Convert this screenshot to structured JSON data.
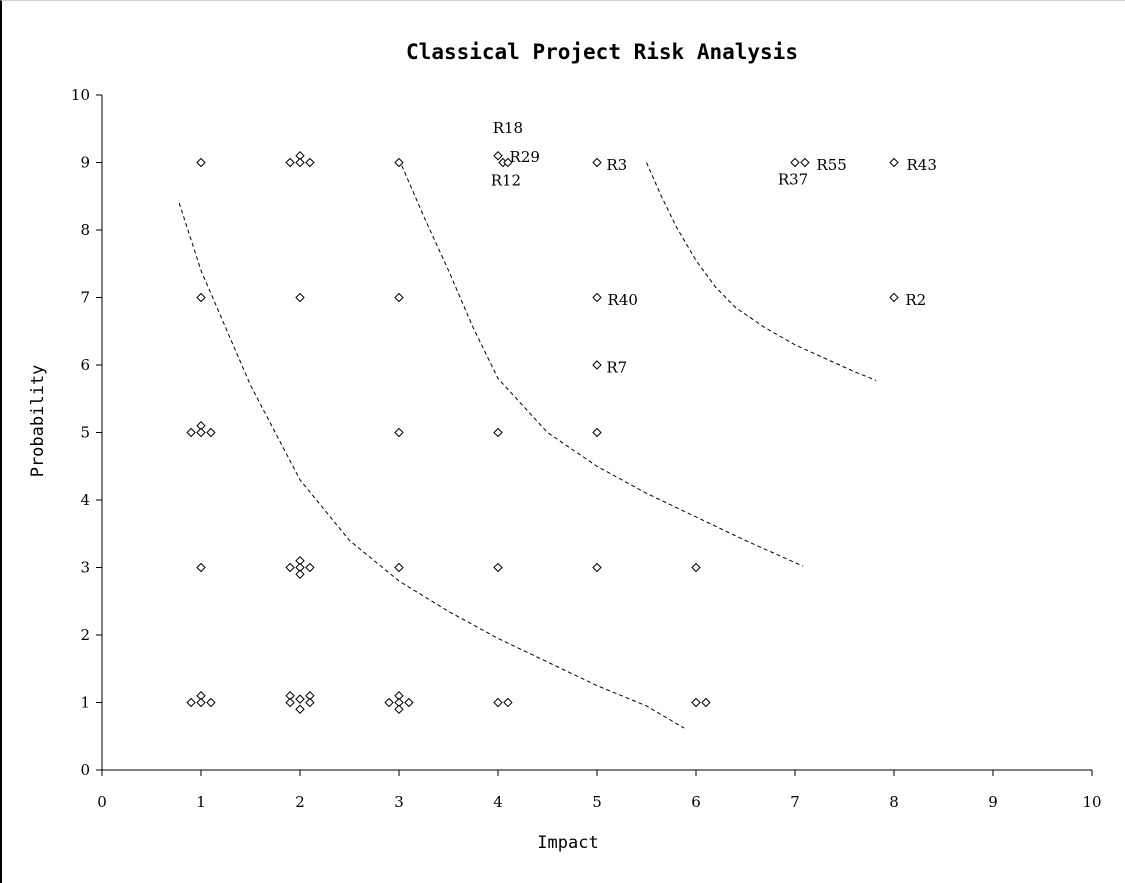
{
  "chart_data": {
    "type": "scatter",
    "title": "Classical Project Risk Analysis",
    "xlabel": "Impact",
    "ylabel": "Probability",
    "xlim": [
      0,
      10
    ],
    "ylim": [
      0,
      10
    ],
    "xticks": [
      "0",
      "1",
      "2",
      "3",
      "4",
      "5",
      "6",
      "7",
      "8",
      "9",
      "10"
    ],
    "yticks": [
      "0",
      "1",
      "2",
      "3",
      "4",
      "5",
      "6",
      "7",
      "8",
      "9",
      "10"
    ],
    "grid": false,
    "marker": "diamond",
    "points": [
      {
        "x": 1,
        "y": 9
      },
      {
        "x": 1.9,
        "y": 9
      },
      {
        "x": 2,
        "y": 9.1
      },
      {
        "x": 2,
        "y": 9
      },
      {
        "x": 2.1,
        "y": 9
      },
      {
        "x": 3,
        "y": 9
      },
      {
        "x": 4,
        "y": 9.1
      },
      {
        "x": 4.05,
        "y": 9
      },
      {
        "x": 4.1,
        "y": 9
      },
      {
        "x": 5,
        "y": 9
      },
      {
        "x": 7,
        "y": 9
      },
      {
        "x": 7.1,
        "y": 9
      },
      {
        "x": 8,
        "y": 9
      },
      {
        "x": 1,
        "y": 7
      },
      {
        "x": 2,
        "y": 7
      },
      {
        "x": 3,
        "y": 7
      },
      {
        "x": 5,
        "y": 7
      },
      {
        "x": 8,
        "y": 7
      },
      {
        "x": 5,
        "y": 6
      },
      {
        "x": 0.9,
        "y": 5
      },
      {
        "x": 1,
        "y": 5.1
      },
      {
        "x": 1,
        "y": 5
      },
      {
        "x": 1.1,
        "y": 5
      },
      {
        "x": 3,
        "y": 5
      },
      {
        "x": 4,
        "y": 5
      },
      {
        "x": 5,
        "y": 5
      },
      {
        "x": 1,
        "y": 3
      },
      {
        "x": 1.9,
        "y": 3
      },
      {
        "x": 2,
        "y": 3.1
      },
      {
        "x": 2,
        "y": 3
      },
      {
        "x": 2,
        "y": 2.9
      },
      {
        "x": 2.1,
        "y": 3
      },
      {
        "x": 3,
        "y": 3
      },
      {
        "x": 4,
        "y": 3
      },
      {
        "x": 5,
        "y": 3
      },
      {
        "x": 6,
        "y": 3
      },
      {
        "x": 0.9,
        "y": 1
      },
      {
        "x": 1,
        "y": 1.1
      },
      {
        "x": 1,
        "y": 1
      },
      {
        "x": 1.1,
        "y": 1
      },
      {
        "x": 1.9,
        "y": 1.1
      },
      {
        "x": 1.9,
        "y": 1
      },
      {
        "x": 2,
        "y": 1.05
      },
      {
        "x": 2,
        "y": 0.9
      },
      {
        "x": 2.1,
        "y": 1.1
      },
      {
        "x": 2.1,
        "y": 1
      },
      {
        "x": 2.9,
        "y": 1
      },
      {
        "x": 3,
        "y": 1.1
      },
      {
        "x": 3,
        "y": 1
      },
      {
        "x": 3,
        "y": 0.9
      },
      {
        "x": 3.1,
        "y": 1
      },
      {
        "x": 4,
        "y": 1
      },
      {
        "x": 4.1,
        "y": 1
      },
      {
        "x": 6,
        "y": 1
      },
      {
        "x": 6.1,
        "y": 1
      }
    ],
    "annotations": [
      {
        "text": "R18",
        "x": 4.1,
        "y": 9.5
      },
      {
        "text": "R29",
        "x": 4.27,
        "y": 9.07
      },
      {
        "text": "R12",
        "x": 4.08,
        "y": 8.72
      },
      {
        "text": "R3",
        "x": 5.2,
        "y": 8.95
      },
      {
        "text": "R55",
        "x": 7.37,
        "y": 8.95
      },
      {
        "text": "R37",
        "x": 6.98,
        "y": 8.73
      },
      {
        "text": "R43",
        "x": 8.28,
        "y": 8.95
      },
      {
        "text": "R40",
        "x": 5.26,
        "y": 6.95
      },
      {
        "text": "R2",
        "x": 8.22,
        "y": 6.95
      },
      {
        "text": "R7",
        "x": 5.2,
        "y": 5.95
      }
    ],
    "curves": [
      {
        "x": [
          0.78,
          1,
          1.5,
          2,
          2.5,
          3,
          3.5,
          4,
          4.5,
          5,
          5.5,
          5.88
        ],
        "y": [
          8.4,
          7.4,
          5.7,
          4.3,
          3.4,
          2.8,
          2.35,
          1.95,
          1.6,
          1.25,
          0.95,
          0.62
        ]
      },
      {
        "x": [
          3,
          3.25,
          3.5,
          3.75,
          4,
          4.5,
          5,
          5.5,
          6,
          6.5,
          7.08
        ],
        "y": [
          9.05,
          8.2,
          7.4,
          6.55,
          5.8,
          5.0,
          4.5,
          4.1,
          3.75,
          3.4,
          3.02
        ]
      },
      {
        "x": [
          5.5,
          5.65,
          5.8,
          6,
          6.2,
          6.4,
          6.7,
          7,
          7.3,
          7.6,
          7.82
        ],
        "y": [
          9.0,
          8.5,
          8.05,
          7.55,
          7.15,
          6.85,
          6.55,
          6.3,
          6.1,
          5.9,
          5.77
        ]
      }
    ]
  }
}
